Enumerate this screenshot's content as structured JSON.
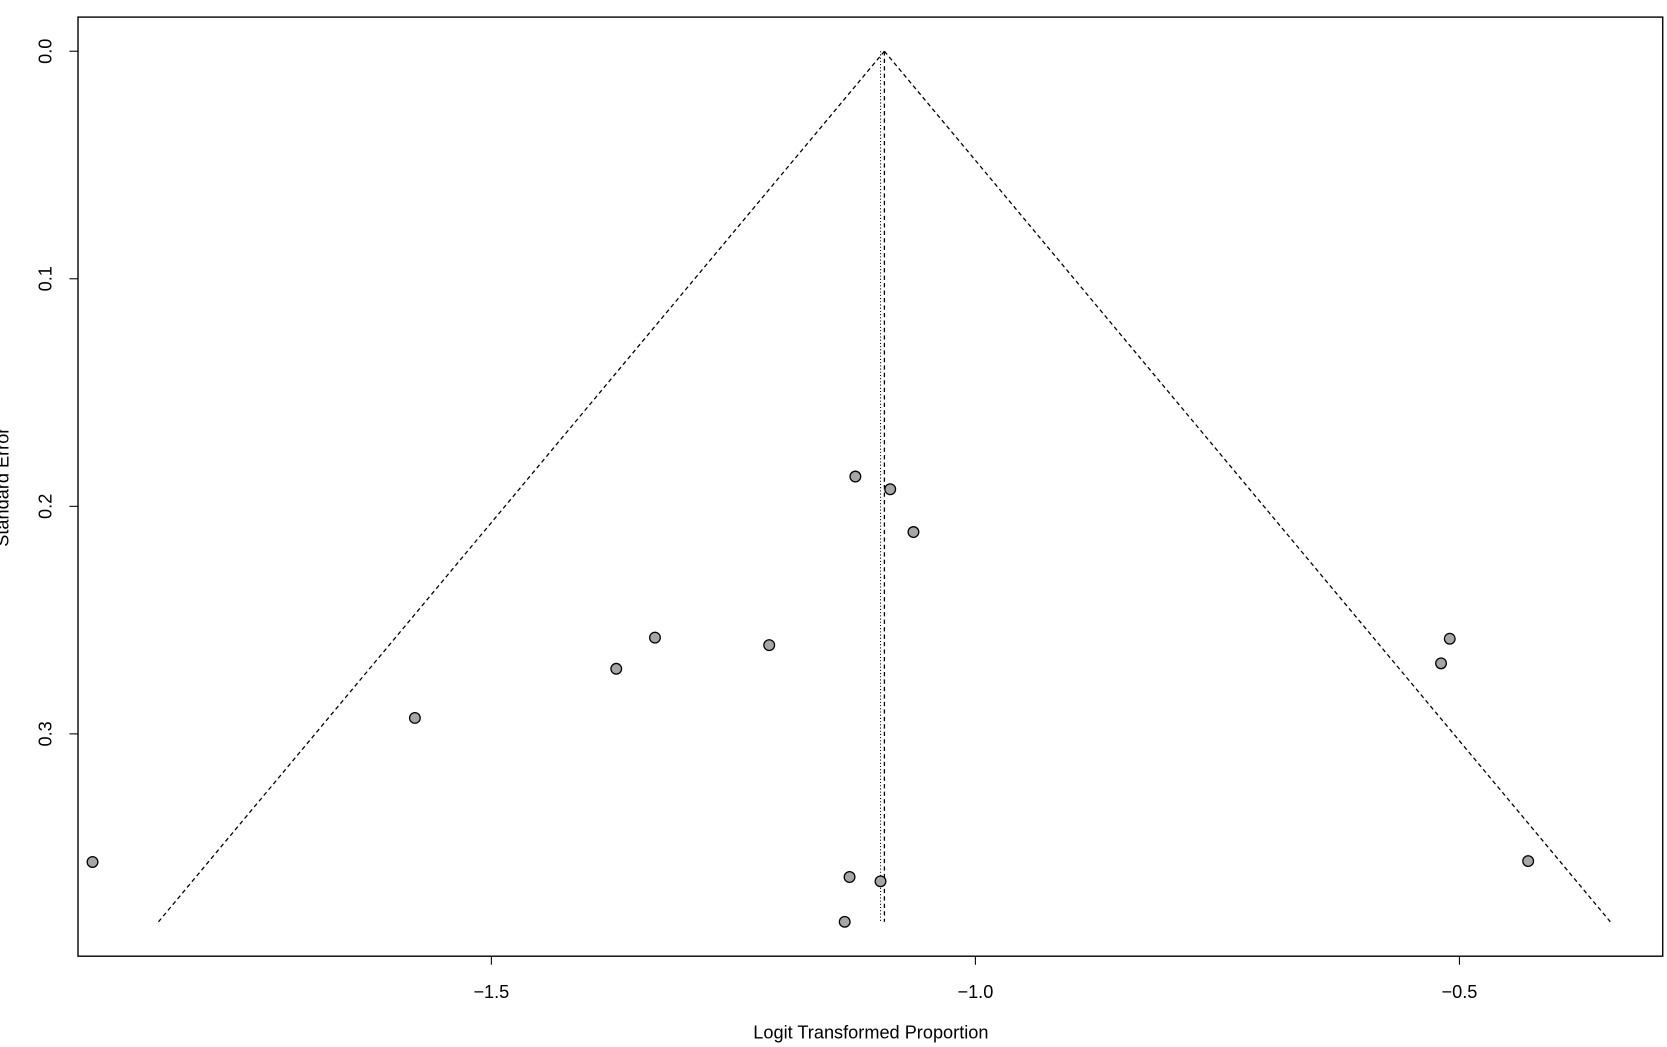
{
  "chart_data": {
    "type": "scatter",
    "x_label": "Logit Transformed Proportion",
    "y_label": "Standard Error",
    "x": [
      -1.912,
      -1.579,
      -1.371,
      -1.331,
      -1.213,
      -1.124,
      -1.088,
      -1.064,
      -1.13,
      -1.098,
      -1.135,
      -0.51,
      -0.519,
      -0.429
    ],
    "values": [
      0.3563,
      0.293,
      0.2714,
      0.2577,
      0.261,
      0.1869,
      0.1925,
      0.2113,
      0.3629,
      0.3648,
      0.3826,
      0.2582,
      0.269,
      0.3559
    ],
    "color": "#a6a6a6",
    "funnel": {
      "center": -1.094,
      "se_max": 0.3826,
      "z": 1.96,
      "reference": -1.098
    },
    "xlim": [
      -1.927,
      -0.29
    ],
    "ylim": [
      0.3977,
      -0.015
    ],
    "xticks": [
      {
        "value": -1.5,
        "label": "−1.5"
      },
      {
        "value": -1.0,
        "label": "−1.0"
      },
      {
        "value": -0.5,
        "label": "−0.5"
      }
    ],
    "yticks": [
      {
        "value": 0,
        "label": "0.0"
      },
      0.1,
      0.2,
      0.3
    ]
  }
}
